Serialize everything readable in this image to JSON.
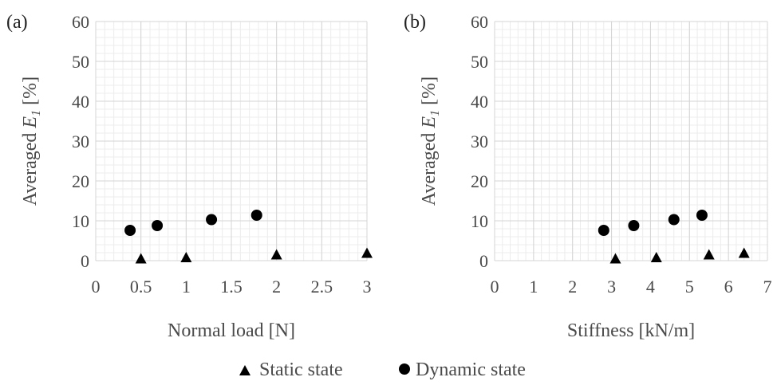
{
  "chart_data": [
    {
      "type": "scatter",
      "panel_label": "(a)",
      "xlabel": "Normal load [N]",
      "ylabel_prefix": "Averaged ",
      "ylabel_var": "E",
      "ylabel_sub": "1",
      "ylabel_suffix": " [%]",
      "xlim": [
        0,
        3
      ],
      "ylim": [
        0,
        60
      ],
      "x_ticks": [
        "0",
        "0.5",
        "1",
        "1.5",
        "2",
        "2.5",
        "3"
      ],
      "y_ticks": [
        "0",
        "10",
        "20",
        "30",
        "40",
        "50",
        "60"
      ],
      "grid": true,
      "series": [
        {
          "name": "Static state",
          "marker": "triangle",
          "color": "#000000",
          "points": [
            {
              "x": 0.5,
              "y": 0.3
            },
            {
              "x": 1.0,
              "y": 0.6
            },
            {
              "x": 2.0,
              "y": 1.3
            },
            {
              "x": 3.0,
              "y": 1.7
            }
          ]
        },
        {
          "name": "Dynamic state",
          "marker": "circle",
          "color": "#000000",
          "points": [
            {
              "x": 0.38,
              "y": 7.6
            },
            {
              "x": 0.68,
              "y": 8.8
            },
            {
              "x": 1.28,
              "y": 10.3
            },
            {
              "x": 1.78,
              "y": 11.4
            }
          ]
        }
      ]
    },
    {
      "type": "scatter",
      "panel_label": "(b)",
      "xlabel": "Stiffness [kN/m]",
      "ylabel_prefix": "Averaged ",
      "ylabel_var": "E",
      "ylabel_sub": "1",
      "ylabel_suffix": " [%]",
      "xlim": [
        0,
        7
      ],
      "ylim": [
        0,
        60
      ],
      "x_ticks": [
        "0",
        "1",
        "2",
        "3",
        "4",
        "5",
        "6",
        "7"
      ],
      "y_ticks": [
        "0",
        "10",
        "20",
        "30",
        "40",
        "50",
        "60"
      ],
      "grid": true,
      "series": [
        {
          "name": "Static state",
          "marker": "triangle",
          "color": "#000000",
          "points": [
            {
              "x": 3.1,
              "y": 0.3
            },
            {
              "x": 4.15,
              "y": 0.6
            },
            {
              "x": 5.5,
              "y": 1.3
            },
            {
              "x": 6.4,
              "y": 1.7
            }
          ]
        },
        {
          "name": "Dynamic state",
          "marker": "circle",
          "color": "#000000",
          "points": [
            {
              "x": 2.8,
              "y": 7.6
            },
            {
              "x": 3.57,
              "y": 8.8
            },
            {
              "x": 4.6,
              "y": 10.3
            },
            {
              "x": 5.32,
              "y": 11.4
            }
          ]
        }
      ]
    }
  ],
  "legend": {
    "placement": "bottom-center",
    "items": [
      {
        "label": "Static state",
        "marker": "triangle"
      },
      {
        "label": "Dynamic state",
        "marker": "circle"
      }
    ]
  }
}
